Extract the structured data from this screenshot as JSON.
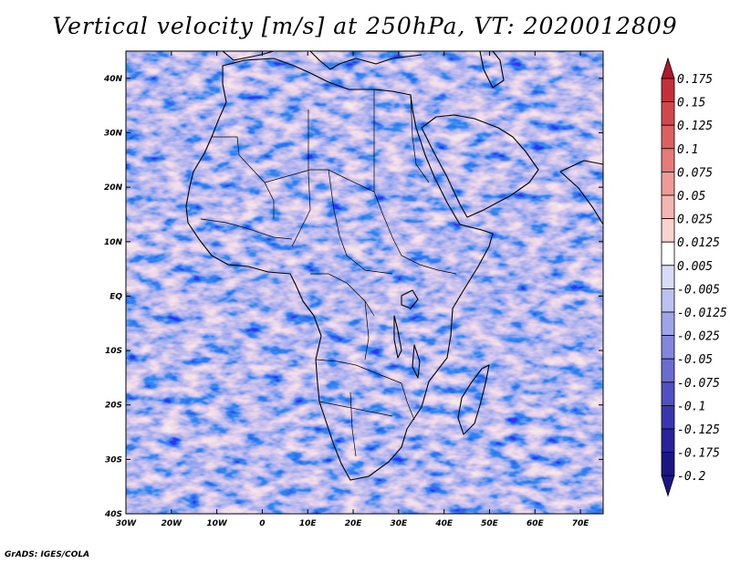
{
  "title": "Vertical velocity [m/s] at 250hPa, VT: 2020012809",
  "footer": "GrADS: IGES/COLA",
  "map": {
    "lon_range": [
      -30,
      75
    ],
    "lat_range": [
      -40,
      45
    ],
    "lon_labels": [
      "30W",
      "20W",
      "10W",
      "0",
      "10E",
      "20E",
      "30E",
      "40E",
      "50E",
      "60E",
      "70E"
    ],
    "lat_labels": [
      "40N",
      "30N",
      "20N",
      "10N",
      "EQ",
      "10S",
      "20S",
      "30S",
      "40S"
    ],
    "field": "vertical velocity",
    "level": "250hPa",
    "valid_time": "2020012809"
  },
  "colorbar": {
    "labels": [
      "0.175",
      "0.15",
      "0.125",
      "0.1",
      "0.075",
      "0.05",
      "0.025",
      "0.0125",
      "0.005",
      "-0.005",
      "-0.0125",
      "-0.025",
      "-0.05",
      "-0.075",
      "-0.1",
      "-0.125",
      "-0.175",
      "-0.2"
    ],
    "colors": [
      "#b2182b",
      "#c4303c",
      "#d2474d",
      "#dc5f61",
      "#e57a79",
      "#ee9a97",
      "#f4b6b3",
      "#f9d3d0",
      "#ffffff",
      "#d8dcf6",
      "#bcc2ef",
      "#9fa4e6",
      "#8387dc",
      "#6a6cd2",
      "#5050c4",
      "#3a36b0",
      "#2a229a",
      "#1c1585"
    ]
  }
}
